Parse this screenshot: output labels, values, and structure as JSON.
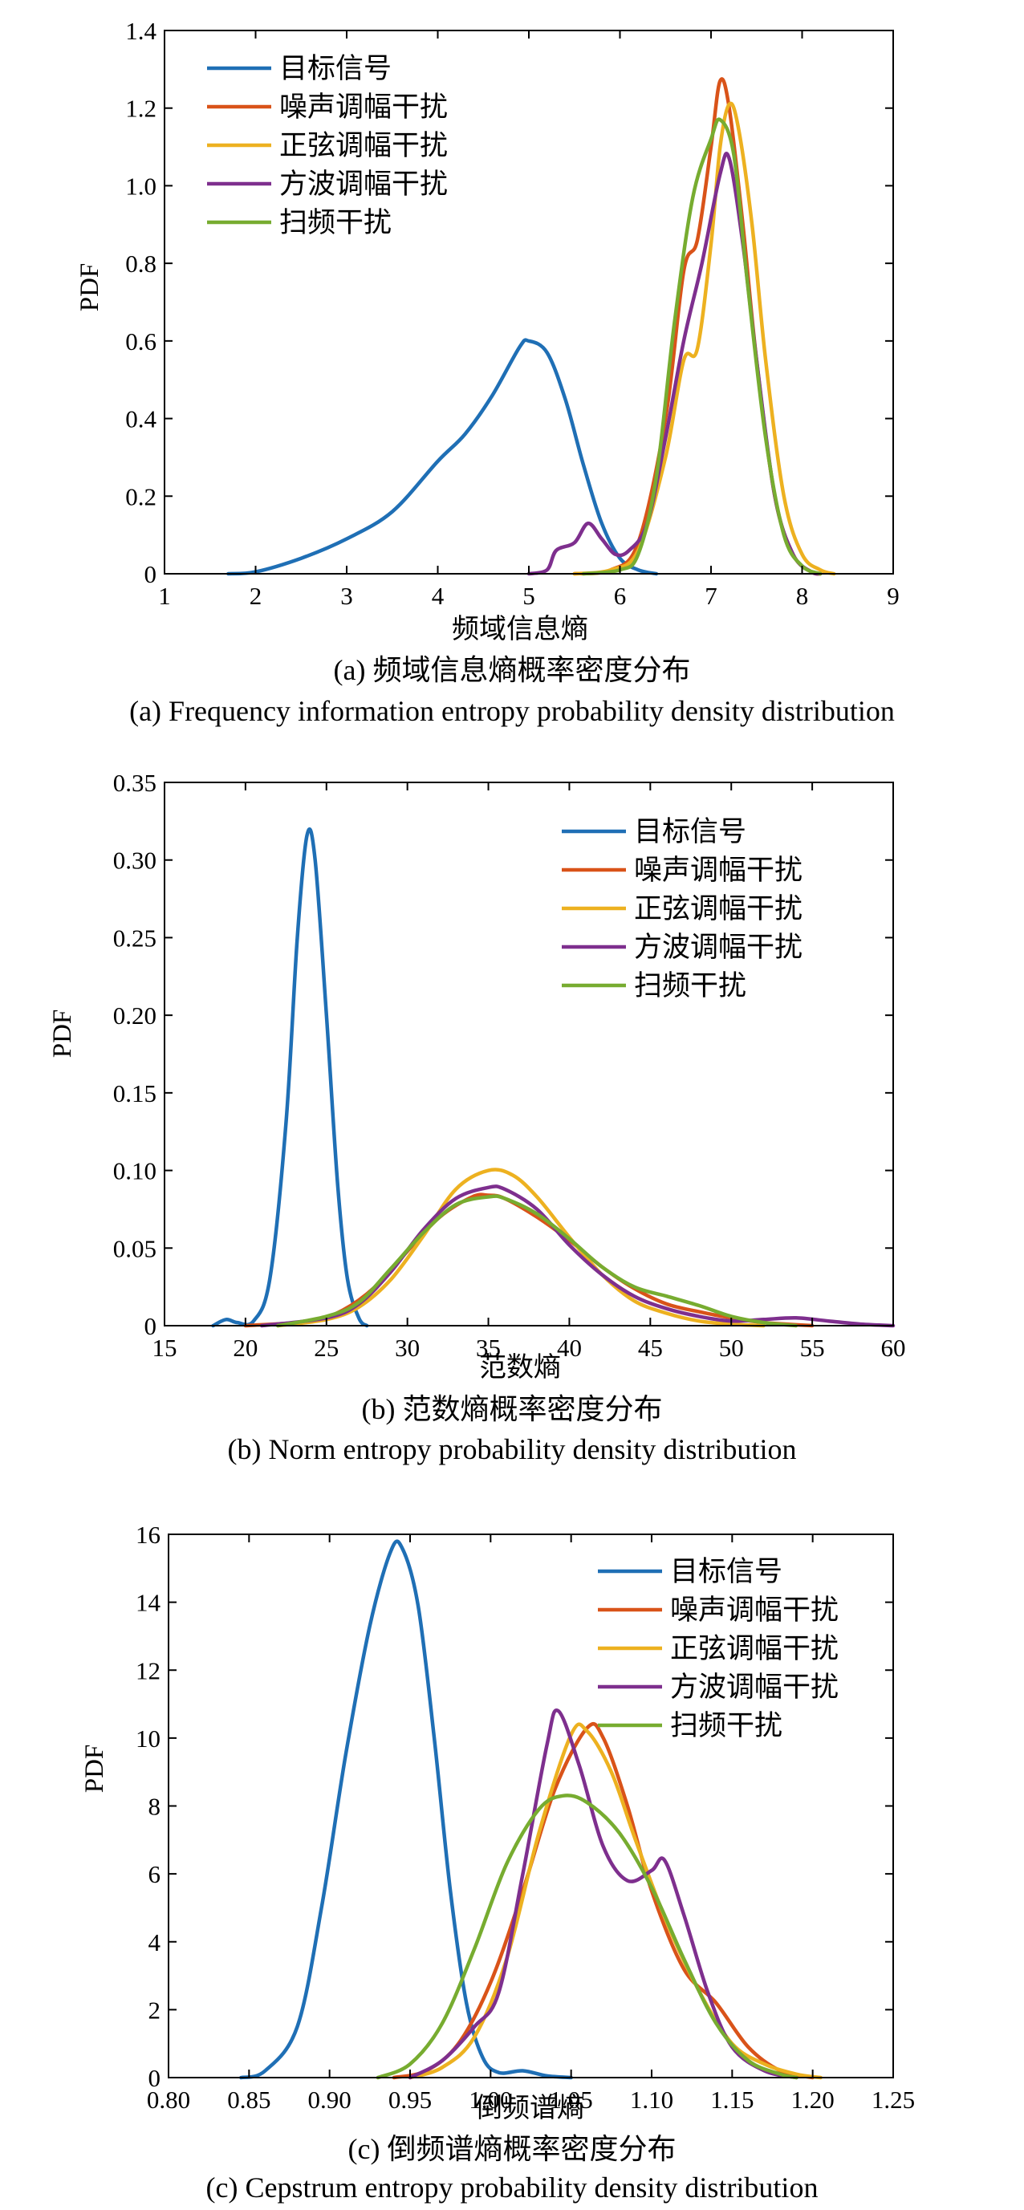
{
  "colors": {
    "target": "#1f6fb5",
    "noise_am": "#d95319",
    "sine_am": "#edb120",
    "square_am": "#7e2f8e",
    "sweep": "#77ac30"
  },
  "chart_data": [
    {
      "type": "line",
      "caption_cn": "(a) 频域信息熵概率密度分布",
      "caption_en": "(a) Frequency information entropy probability density distribution",
      "xlabel": "频域信息熵",
      "ylabel": "PDF",
      "xlim": [
        1,
        9
      ],
      "ylim": [
        0,
        1.4
      ],
      "xticks": [
        "1",
        "2",
        "3",
        "4",
        "5",
        "6",
        "7",
        "8",
        "9"
      ],
      "yticks": [
        "0",
        "0.2",
        "0.4",
        "0.6",
        "0.8",
        "1.0",
        "1.2",
        "1.4"
      ],
      "legend_position": "top-left",
      "series": [
        {
          "name": "目标信号",
          "points": [
            [
              1.7,
              0
            ],
            [
              2.0,
              0.005
            ],
            [
              2.5,
              0.04
            ],
            [
              3.0,
              0.09
            ],
            [
              3.5,
              0.16
            ],
            [
              4.0,
              0.29
            ],
            [
              4.3,
              0.36
            ],
            [
              4.6,
              0.46
            ],
            [
              4.9,
              0.585
            ],
            [
              5.0,
              0.6
            ],
            [
              5.2,
              0.57
            ],
            [
              5.4,
              0.45
            ],
            [
              5.6,
              0.28
            ],
            [
              5.8,
              0.13
            ],
            [
              6.0,
              0.04
            ],
            [
              6.2,
              0.01
            ],
            [
              6.4,
              0
            ]
          ]
        },
        {
          "name": "噪声调幅干扰",
          "points": [
            [
              5.5,
              0
            ],
            [
              5.9,
              0.01
            ],
            [
              6.2,
              0.08
            ],
            [
              6.5,
              0.4
            ],
            [
              6.7,
              0.78
            ],
            [
              6.85,
              0.86
            ],
            [
              7.0,
              1.1
            ],
            [
              7.1,
              1.27
            ],
            [
              7.2,
              1.2
            ],
            [
              7.35,
              0.9
            ],
            [
              7.5,
              0.55
            ],
            [
              7.7,
              0.2
            ],
            [
              7.9,
              0.05
            ],
            [
              8.1,
              0.005
            ],
            [
              8.2,
              0
            ]
          ]
        },
        {
          "name": "正弦调幅干扰",
          "points": [
            [
              5.5,
              0
            ],
            [
              5.9,
              0.01
            ],
            [
              6.2,
              0.06
            ],
            [
              6.5,
              0.3
            ],
            [
              6.7,
              0.55
            ],
            [
              6.85,
              0.58
            ],
            [
              7.0,
              0.85
            ],
            [
              7.1,
              1.1
            ],
            [
              7.2,
              1.21
            ],
            [
              7.3,
              1.15
            ],
            [
              7.45,
              0.9
            ],
            [
              7.6,
              0.55
            ],
            [
              7.8,
              0.2
            ],
            [
              8.0,
              0.05
            ],
            [
              8.2,
              0.01
            ],
            [
              8.35,
              0
            ]
          ]
        },
        {
          "name": "方波调幅干扰",
          "points": [
            [
              5.0,
              0
            ],
            [
              5.2,
              0.01
            ],
            [
              5.3,
              0.06
            ],
            [
              5.5,
              0.08
            ],
            [
              5.65,
              0.13
            ],
            [
              5.8,
              0.09
            ],
            [
              5.95,
              0.05
            ],
            [
              6.1,
              0.06
            ],
            [
              6.3,
              0.13
            ],
            [
              6.5,
              0.35
            ],
            [
              6.7,
              0.6
            ],
            [
              6.9,
              0.8
            ],
            [
              7.1,
              1.03
            ],
            [
              7.2,
              1.07
            ],
            [
              7.35,
              0.85
            ],
            [
              7.5,
              0.55
            ],
            [
              7.7,
              0.2
            ],
            [
              7.9,
              0.05
            ],
            [
              8.1,
              0.005
            ],
            [
              8.2,
              0
            ]
          ]
        },
        {
          "name": "扫频干扰",
          "points": [
            [
              5.6,
              0
            ],
            [
              6.0,
              0.01
            ],
            [
              6.2,
              0.05
            ],
            [
              6.4,
              0.25
            ],
            [
              6.6,
              0.65
            ],
            [
              6.8,
              0.97
            ],
            [
              7.0,
              1.12
            ],
            [
              7.1,
              1.17
            ],
            [
              7.25,
              1.08
            ],
            [
              7.4,
              0.75
            ],
            [
              7.6,
              0.35
            ],
            [
              7.8,
              0.1
            ],
            [
              8.0,
              0.02
            ],
            [
              8.2,
              0
            ]
          ]
        }
      ]
    },
    {
      "type": "line",
      "caption_cn": "(b) 范数熵概率密度分布",
      "caption_en": "(b) Norm entropy probability density distribution",
      "xlabel": "范数熵",
      "ylabel": "PDF",
      "xlim": [
        15,
        60
      ],
      "ylim": [
        0,
        0.35
      ],
      "xticks": [
        "15",
        "20",
        "25",
        "30",
        "35",
        "40",
        "45",
        "50",
        "55",
        "60"
      ],
      "yticks": [
        "0",
        "0.05",
        "0.10",
        "0.15",
        "0.20",
        "0.25",
        "0.30",
        "0.35"
      ],
      "legend_position": "top-right",
      "series": [
        {
          "name": "目标信号",
          "points": [
            [
              18,
              0
            ],
            [
              18.8,
              0.004
            ],
            [
              19.5,
              0.002
            ],
            [
              20.5,
              0.003
            ],
            [
              21.5,
              0.03
            ],
            [
              22.5,
              0.13
            ],
            [
              23.2,
              0.25
            ],
            [
              23.8,
              0.316
            ],
            [
              24.3,
              0.3
            ],
            [
              25.0,
              0.2
            ],
            [
              25.7,
              0.09
            ],
            [
              26.3,
              0.03
            ],
            [
              27,
              0.005
            ],
            [
              27.5,
              0
            ]
          ]
        },
        {
          "name": "噪声调幅干扰",
          "points": [
            [
              20,
              0
            ],
            [
              24,
              0.003
            ],
            [
              26,
              0.01
            ],
            [
              28,
              0.025
            ],
            [
              30,
              0.048
            ],
            [
              32,
              0.07
            ],
            [
              34,
              0.083
            ],
            [
              35,
              0.084
            ],
            [
              36,
              0.082
            ],
            [
              38,
              0.07
            ],
            [
              40,
              0.055
            ],
            [
              42,
              0.038
            ],
            [
              44,
              0.024
            ],
            [
              46,
              0.014
            ],
            [
              48,
              0.009
            ],
            [
              50,
              0.005
            ],
            [
              52,
              0.002
            ],
            [
              55,
              0
            ]
          ]
        },
        {
          "name": "正弦调幅干扰",
          "points": [
            [
              22,
              0
            ],
            [
              25,
              0.004
            ],
            [
              27,
              0.012
            ],
            [
              29,
              0.03
            ],
            [
              31,
              0.058
            ],
            [
              33,
              0.088
            ],
            [
              35,
              0.1
            ],
            [
              36.5,
              0.097
            ],
            [
              38,
              0.083
            ],
            [
              40,
              0.057
            ],
            [
              42,
              0.033
            ],
            [
              44,
              0.016
            ],
            [
              46,
              0.008
            ],
            [
              48,
              0.003
            ],
            [
              50,
              0.001
            ],
            [
              52,
              0
            ]
          ]
        },
        {
          "name": "方波调幅干扰",
          "points": [
            [
              21,
              0
            ],
            [
              25,
              0.005
            ],
            [
              27,
              0.014
            ],
            [
              29,
              0.035
            ],
            [
              31,
              0.062
            ],
            [
              33,
              0.082
            ],
            [
              35,
              0.089
            ],
            [
              36,
              0.088
            ],
            [
              38,
              0.075
            ],
            [
              40,
              0.052
            ],
            [
              42,
              0.033
            ],
            [
              44,
              0.019
            ],
            [
              46,
              0.011
            ],
            [
              48,
              0.006
            ],
            [
              50,
              0.003
            ],
            [
              52,
              0.004
            ],
            [
              54,
              0.005
            ],
            [
              56,
              0.003
            ],
            [
              58,
              0.001
            ],
            [
              60,
              0
            ]
          ]
        },
        {
          "name": "扫频干扰",
          "points": [
            [
              22,
              0
            ],
            [
              25,
              0.006
            ],
            [
              27,
              0.015
            ],
            [
              29,
              0.037
            ],
            [
              31,
              0.06
            ],
            [
              33,
              0.078
            ],
            [
              35,
              0.083
            ],
            [
              36,
              0.082
            ],
            [
              38,
              0.072
            ],
            [
              40,
              0.056
            ],
            [
              42,
              0.038
            ],
            [
              44,
              0.025
            ],
            [
              46,
              0.019
            ],
            [
              48,
              0.013
            ],
            [
              50,
              0.006
            ],
            [
              52,
              0.002
            ],
            [
              54,
              0
            ]
          ]
        }
      ]
    },
    {
      "type": "line",
      "caption_cn": "(c) 倒频谱熵概率密度分布",
      "caption_en": "(c) Cepstrum entropy probability density distribution",
      "xlabel": "倒频谱熵",
      "ylabel": "PDF",
      "xlim": [
        0.8,
        1.25
      ],
      "ylim": [
        0,
        16
      ],
      "xticks": [
        "0.80",
        "0.85",
        "0.90",
        "0.95",
        "1.00",
        "1.05",
        "1.10",
        "1.15",
        "1.20",
        "1.25"
      ],
      "yticks": [
        "0",
        "2",
        "4",
        "6",
        "8",
        "10",
        "12",
        "14",
        "16"
      ],
      "legend_position": "top-right",
      "series": [
        {
          "name": "目标信号",
          "points": [
            [
              0.845,
              0
            ],
            [
              0.86,
              0.2
            ],
            [
              0.88,
              1.5
            ],
            [
              0.895,
              5
            ],
            [
              0.91,
              9.5
            ],
            [
              0.925,
              13.3
            ],
            [
              0.938,
              15.5
            ],
            [
              0.945,
              15.6
            ],
            [
              0.955,
              13.9
            ],
            [
              0.965,
              10
            ],
            [
              0.975,
              5.5
            ],
            [
              0.985,
              2.2
            ],
            [
              0.995,
              0.6
            ],
            [
              1.005,
              0.15
            ],
            [
              1.02,
              0.2
            ],
            [
              1.035,
              0.05
            ],
            [
              1.05,
              0
            ]
          ]
        },
        {
          "name": "噪声调幅干扰",
          "points": [
            [
              0.94,
              0
            ],
            [
              0.96,
              0.2
            ],
            [
              0.98,
              1
            ],
            [
              1.0,
              2.8
            ],
            [
              1.02,
              5.5
            ],
            [
              1.04,
              8.5
            ],
            [
              1.06,
              10.3
            ],
            [
              1.07,
              10
            ],
            [
              1.085,
              8
            ],
            [
              1.1,
              5.5
            ],
            [
              1.12,
              3.2
            ],
            [
              1.14,
              2.2
            ],
            [
              1.16,
              0.9
            ],
            [
              1.18,
              0.2
            ],
            [
              1.2,
              0
            ]
          ]
        },
        {
          "name": "正弦调幅干扰",
          "points": [
            [
              0.95,
              0
            ],
            [
              0.97,
              0.3
            ],
            [
              0.99,
              1.2
            ],
            [
              1.01,
              3.5
            ],
            [
              1.03,
              7.2
            ],
            [
              1.05,
              10.1
            ],
            [
              1.06,
              10.2
            ],
            [
              1.075,
              9
            ],
            [
              1.09,
              7
            ],
            [
              1.11,
              4.5
            ],
            [
              1.13,
              2.5
            ],
            [
              1.15,
              1
            ],
            [
              1.17,
              0.4
            ],
            [
              1.19,
              0.1
            ],
            [
              1.205,
              0
            ]
          ]
        },
        {
          "name": "方波调幅干扰",
          "points": [
            [
              0.95,
              0
            ],
            [
              0.97,
              0.5
            ],
            [
              0.99,
              1.5
            ],
            [
              1.005,
              2.5
            ],
            [
              1.02,
              6
            ],
            [
              1.035,
              9.8
            ],
            [
              1.042,
              10.8
            ],
            [
              1.055,
              9.2
            ],
            [
              1.07,
              6.8
            ],
            [
              1.085,
              5.8
            ],
            [
              1.1,
              6.1
            ],
            [
              1.108,
              6.4
            ],
            [
              1.12,
              4.8
            ],
            [
              1.135,
              2.5
            ],
            [
              1.15,
              0.9
            ],
            [
              1.17,
              0.2
            ],
            [
              1.19,
              0
            ]
          ]
        },
        {
          "name": "扫频干扰",
          "points": [
            [
              0.93,
              0
            ],
            [
              0.95,
              0.4
            ],
            [
              0.97,
              1.6
            ],
            [
              0.99,
              3.8
            ],
            [
              1.01,
              6.3
            ],
            [
              1.03,
              7.9
            ],
            [
              1.045,
              8.3
            ],
            [
              1.06,
              8.1
            ],
            [
              1.08,
              7.2
            ],
            [
              1.1,
              5.6
            ],
            [
              1.12,
              3.5
            ],
            [
              1.14,
              1.6
            ],
            [
              1.16,
              0.5
            ],
            [
              1.18,
              0.1
            ],
            [
              1.19,
              0
            ]
          ]
        }
      ]
    }
  ]
}
